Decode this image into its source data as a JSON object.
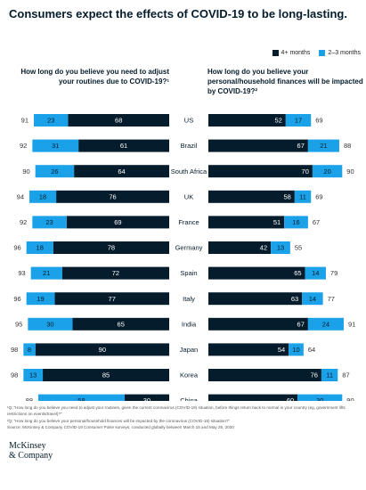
{
  "title": "Consumers expect the effects of COVID-19 to be long-lasting.",
  "colors": {
    "dark": "#051c2c",
    "light": "#1ba1e8"
  },
  "legend": {
    "long": "4+ months",
    "short": "2–3 months"
  },
  "questions": {
    "left": "How long do you believe you need to adjust your routines due to COVID-19?¹",
    "right": "How long do you believe your personal/household finances will be impacted by COVID-19?²"
  },
  "chart_data": {
    "type": "bar",
    "categories": [
      "US",
      "Brazil",
      "South Africa",
      "UK",
      "France",
      "Germany",
      "Spain",
      "Italy",
      "India",
      "Japan",
      "Korea",
      "China"
    ],
    "left": {
      "title": "How long do you believe you need to adjust your routines due to COVID-19?¹",
      "series": [
        {
          "name": "4+ months",
          "values": [
            68,
            61,
            64,
            76,
            69,
            78,
            72,
            77,
            65,
            90,
            85,
            30
          ]
        },
        {
          "name": "2–3 months",
          "values": [
            23,
            31,
            26,
            18,
            23,
            18,
            21,
            19,
            30,
            8,
            13,
            58
          ]
        }
      ],
      "totals": [
        91,
        92,
        90,
        94,
        92,
        96,
        93,
        96,
        95,
        98,
        98,
        88
      ]
    },
    "right": {
      "title": "How long do you believe your personal/household finances will be impacted by COVID-19?²",
      "series": [
        {
          "name": "4+ months",
          "values": [
            52,
            67,
            70,
            58,
            51,
            42,
            65,
            63,
            67,
            54,
            76,
            60
          ]
        },
        {
          "name": "2–3 months",
          "values": [
            17,
            21,
            20,
            11,
            16,
            13,
            14,
            14,
            24,
            10,
            11,
            30
          ]
        }
      ],
      "totals": [
        69,
        88,
        90,
        69,
        67,
        55,
        79,
        77,
        91,
        64,
        87,
        90
      ]
    }
  },
  "footnotes": [
    "¹Q: “How long do you believe you need to adjust your routines, given the current coronavirus (COVID-19) situation, before things return back to normal in your country (eg, government lifts restrictions on events/travel)?”",
    "²Q: “How long do you believe your personal/household finances will be impacted by the coronavirus (COVID-19) situation?”",
    "Source: McKinsey & Company COVID-19 Consumer Pulse surveys, conducted globally between March 15 and May 25, 2020"
  ],
  "logo": {
    "line1": "McKinsey",
    "line2": "& Company"
  }
}
